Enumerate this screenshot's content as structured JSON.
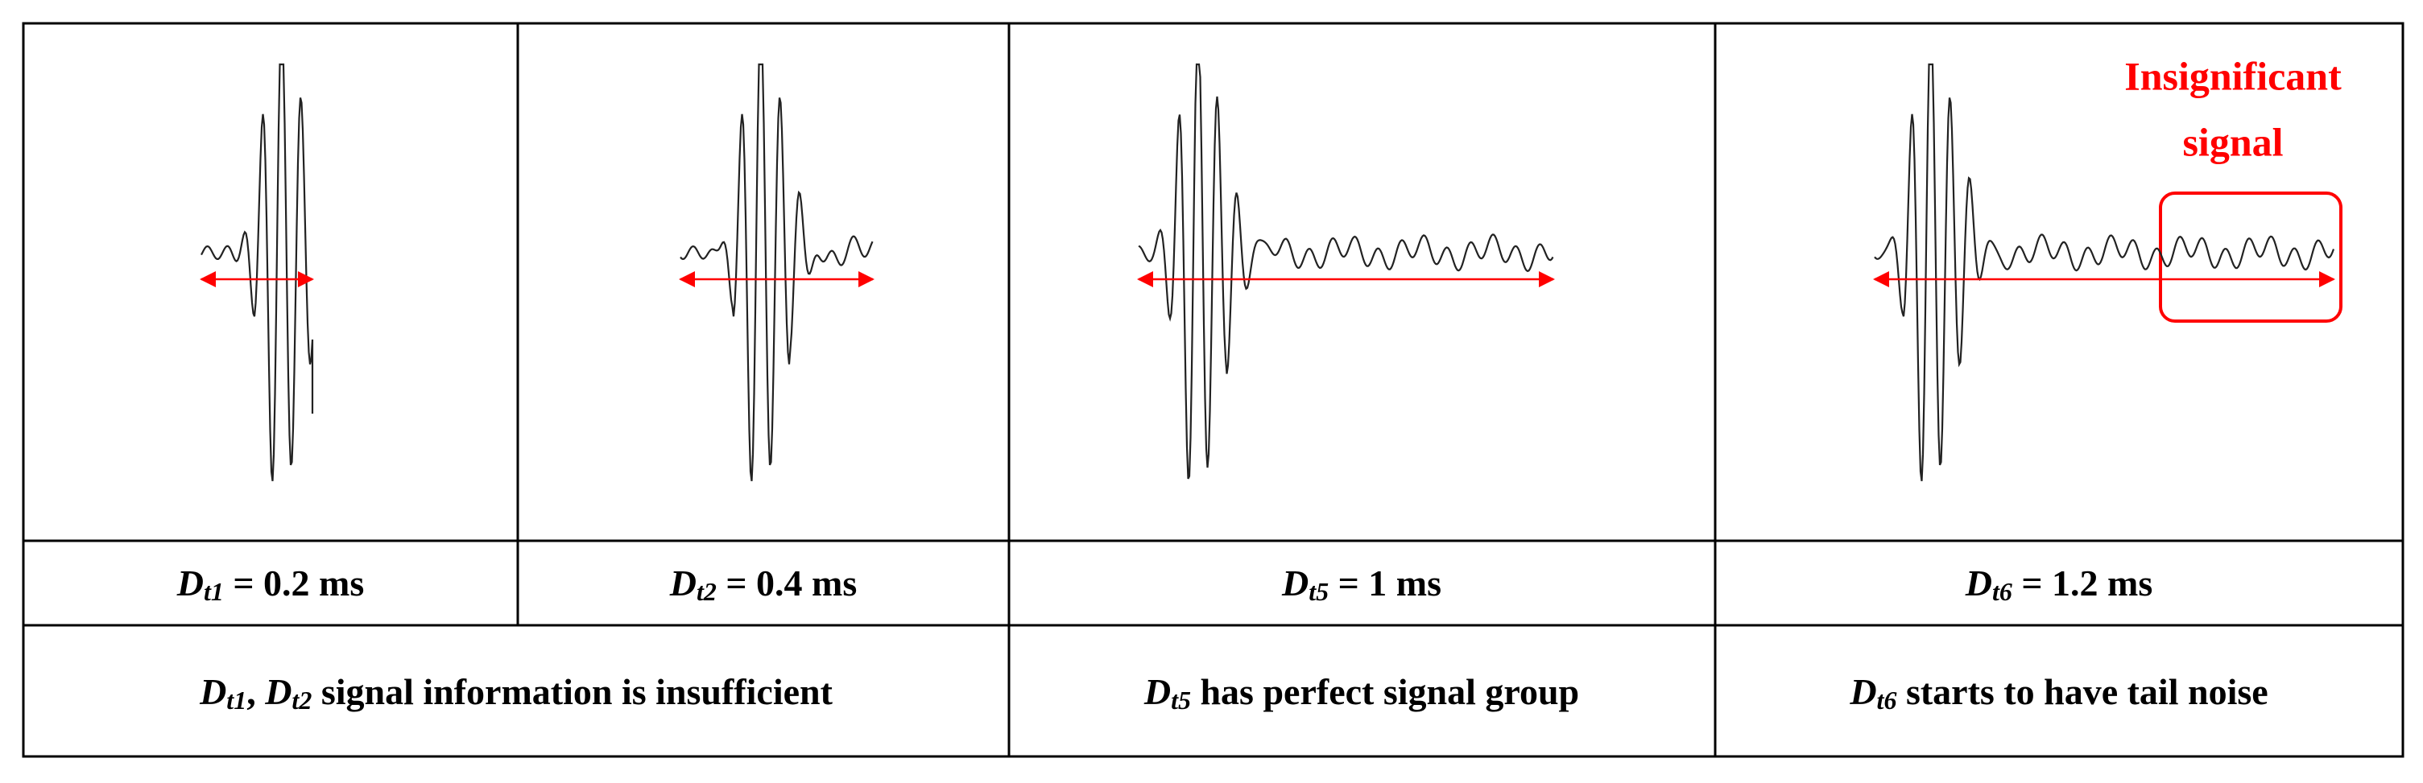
{
  "labels": [
    {
      "runs": [
        {
          "text": "D",
          "style": "math"
        },
        {
          "text": "t1",
          "style": "sub"
        },
        {
          "text": " = 0.2 ms"
        }
      ]
    },
    {
      "runs": [
        {
          "text": "D",
          "style": "math"
        },
        {
          "text": "t2",
          "style": "sub"
        },
        {
          "text": " = 0.4 ms"
        }
      ]
    },
    {
      "runs": [
        {
          "text": "D",
          "style": "math"
        },
        {
          "text": "t5",
          "style": "sub"
        },
        {
          "text": " = 1 ms"
        }
      ]
    },
    {
      "runs": [
        {
          "text": "D",
          "style": "math"
        },
        {
          "text": "t6",
          "style": "sub"
        },
        {
          "text": " = 1.2 ms"
        }
      ]
    }
  ],
  "descriptions": [
    {
      "runs": [
        {
          "text": "D",
          "style": "math"
        },
        {
          "text": "t1",
          "style": "sub"
        },
        {
          "text": ", "
        },
        {
          "text": "D",
          "style": "math"
        },
        {
          "text": "t2",
          "style": "sub"
        },
        {
          "text": " signal information is insufficient"
        }
      ]
    },
    {
      "runs": [
        {
          "text": "D",
          "style": "math"
        },
        {
          "text": "t5",
          "style": "sub"
        },
        {
          "text": " has perfect signal group"
        }
      ]
    },
    {
      "runs": [
        {
          "text": "D",
          "style": "math"
        },
        {
          "text": "t6",
          "style": "sub"
        },
        {
          "text": " starts to have tail noise"
        }
      ]
    }
  ],
  "annotation": {
    "lines": [
      "Insignificant",
      "signal"
    ]
  }
}
